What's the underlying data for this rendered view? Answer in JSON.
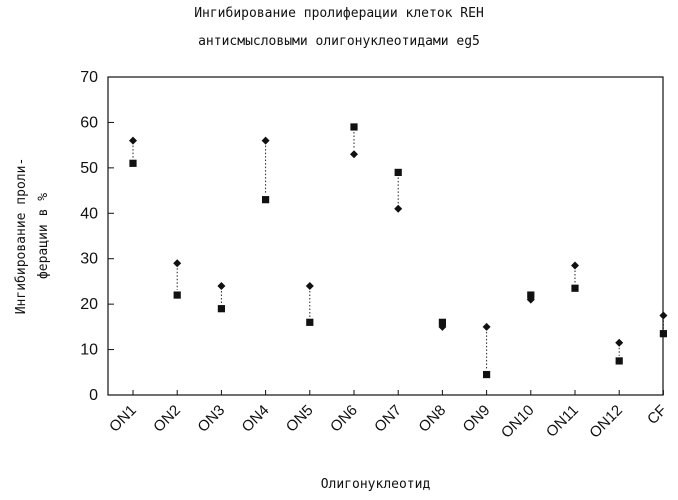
{
  "chart_data": {
    "type": "scatter",
    "title": "Ингибирование пролиферации клеток REH",
    "subtitle": "антисмысловыми олигонуклеотидами eg5",
    "xlabel": "Олигонуклеотид",
    "ylabel_lines": [
      "Ингибирование проли-",
      "ферации в %"
    ],
    "ylim": [
      0,
      70
    ],
    "yticks": [
      0,
      10,
      20,
      30,
      40,
      50,
      60,
      70
    ],
    "grid": false,
    "categories": [
      "ON1",
      "ON2",
      "ON3",
      "ON4",
      "ON5",
      "ON6",
      "ON7",
      "ON8",
      "ON9",
      "ON10",
      "ON11",
      "ON12",
      "CF"
    ],
    "series": [
      {
        "marker": "diamond",
        "values": [
          56,
          29,
          24,
          56,
          24,
          53,
          41,
          15,
          15,
          21,
          28.5,
          11.5,
          17.5
        ]
      },
      {
        "marker": "square",
        "values": [
          51,
          22,
          19,
          43,
          16,
          59,
          49,
          16,
          4.5,
          22,
          23.5,
          7.5,
          13.5
        ]
      }
    ],
    "colors": {
      "marker": "#111111",
      "axis": "#111111",
      "connector": "#222222"
    }
  }
}
